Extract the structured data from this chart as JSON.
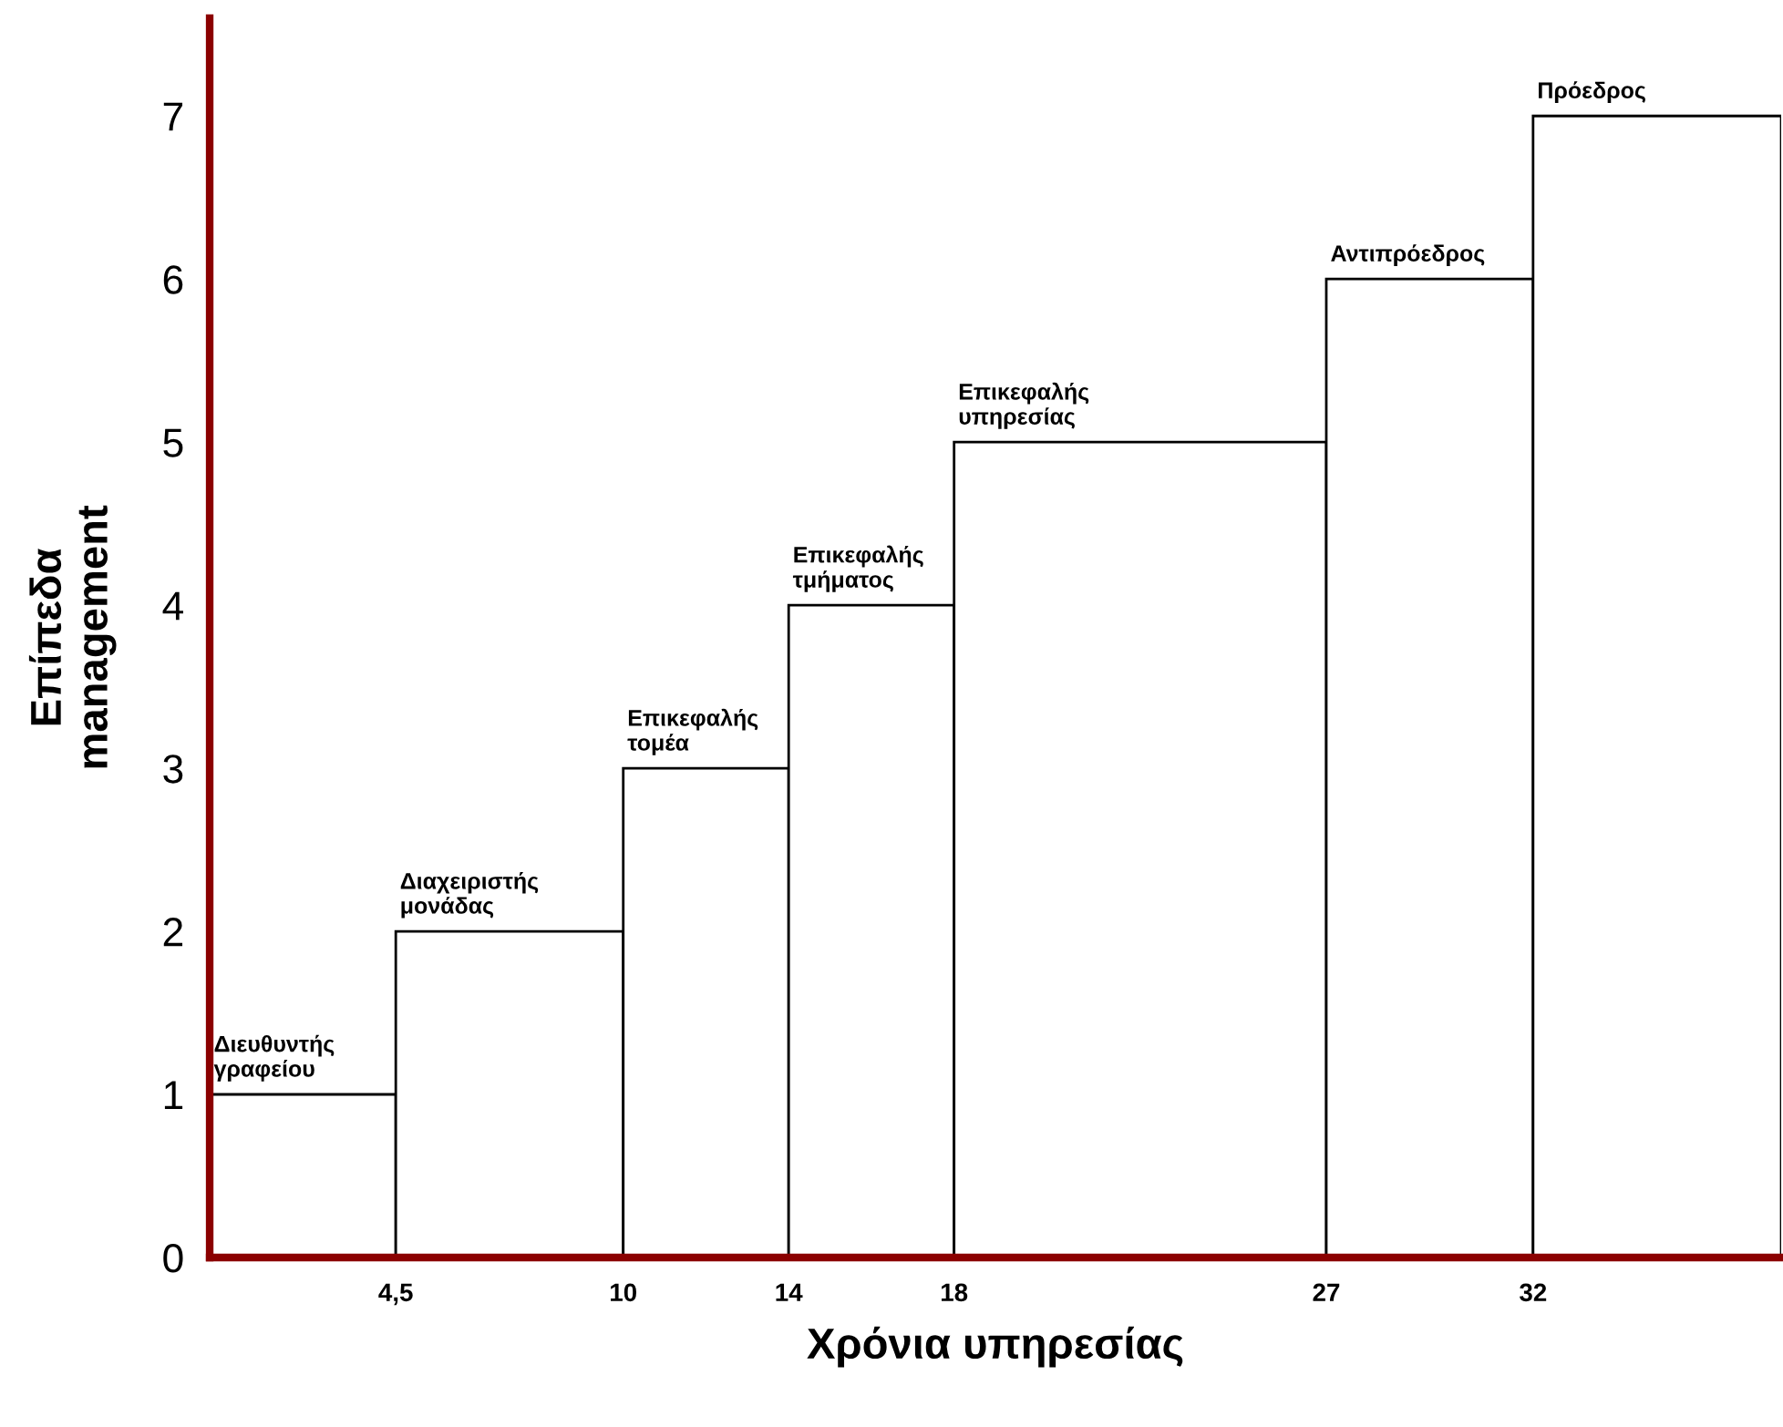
{
  "chart_data": {
    "type": "bar",
    "xlabel": "Χρόνια υπηρεσίας",
    "ylabel": "Επίπεδα\nmanagement",
    "x": [
      2.25,
      7.25,
      12,
      16,
      22.5,
      29.5,
      35
    ],
    "values": [
      1,
      2,
      3,
      4,
      5,
      6,
      7
    ],
    "value_labels": [
      "Διευθυντής\nγραφείου",
      "Διαχειριστής\nμονάδας",
      "Επικεφαλής\nτομέα",
      "Επικεφαλής\nτμήματος",
      "Επικεφαλής\nυπηρεσίας",
      "Αντιπρόεδρος",
      "Πρόεδρος"
    ],
    "color": "#ffffff",
    "xlim": [
      0,
      38
    ],
    "ylim": [
      0,
      7.6
    ],
    "xticks": [
      {
        "value": 4.5,
        "label": "4,5"
      },
      10,
      14,
      18,
      27,
      32
    ],
    "yticks": [
      0,
      1,
      2,
      3,
      4,
      5,
      6,
      7
    ],
    "grid": false,
    "legend": false
  }
}
